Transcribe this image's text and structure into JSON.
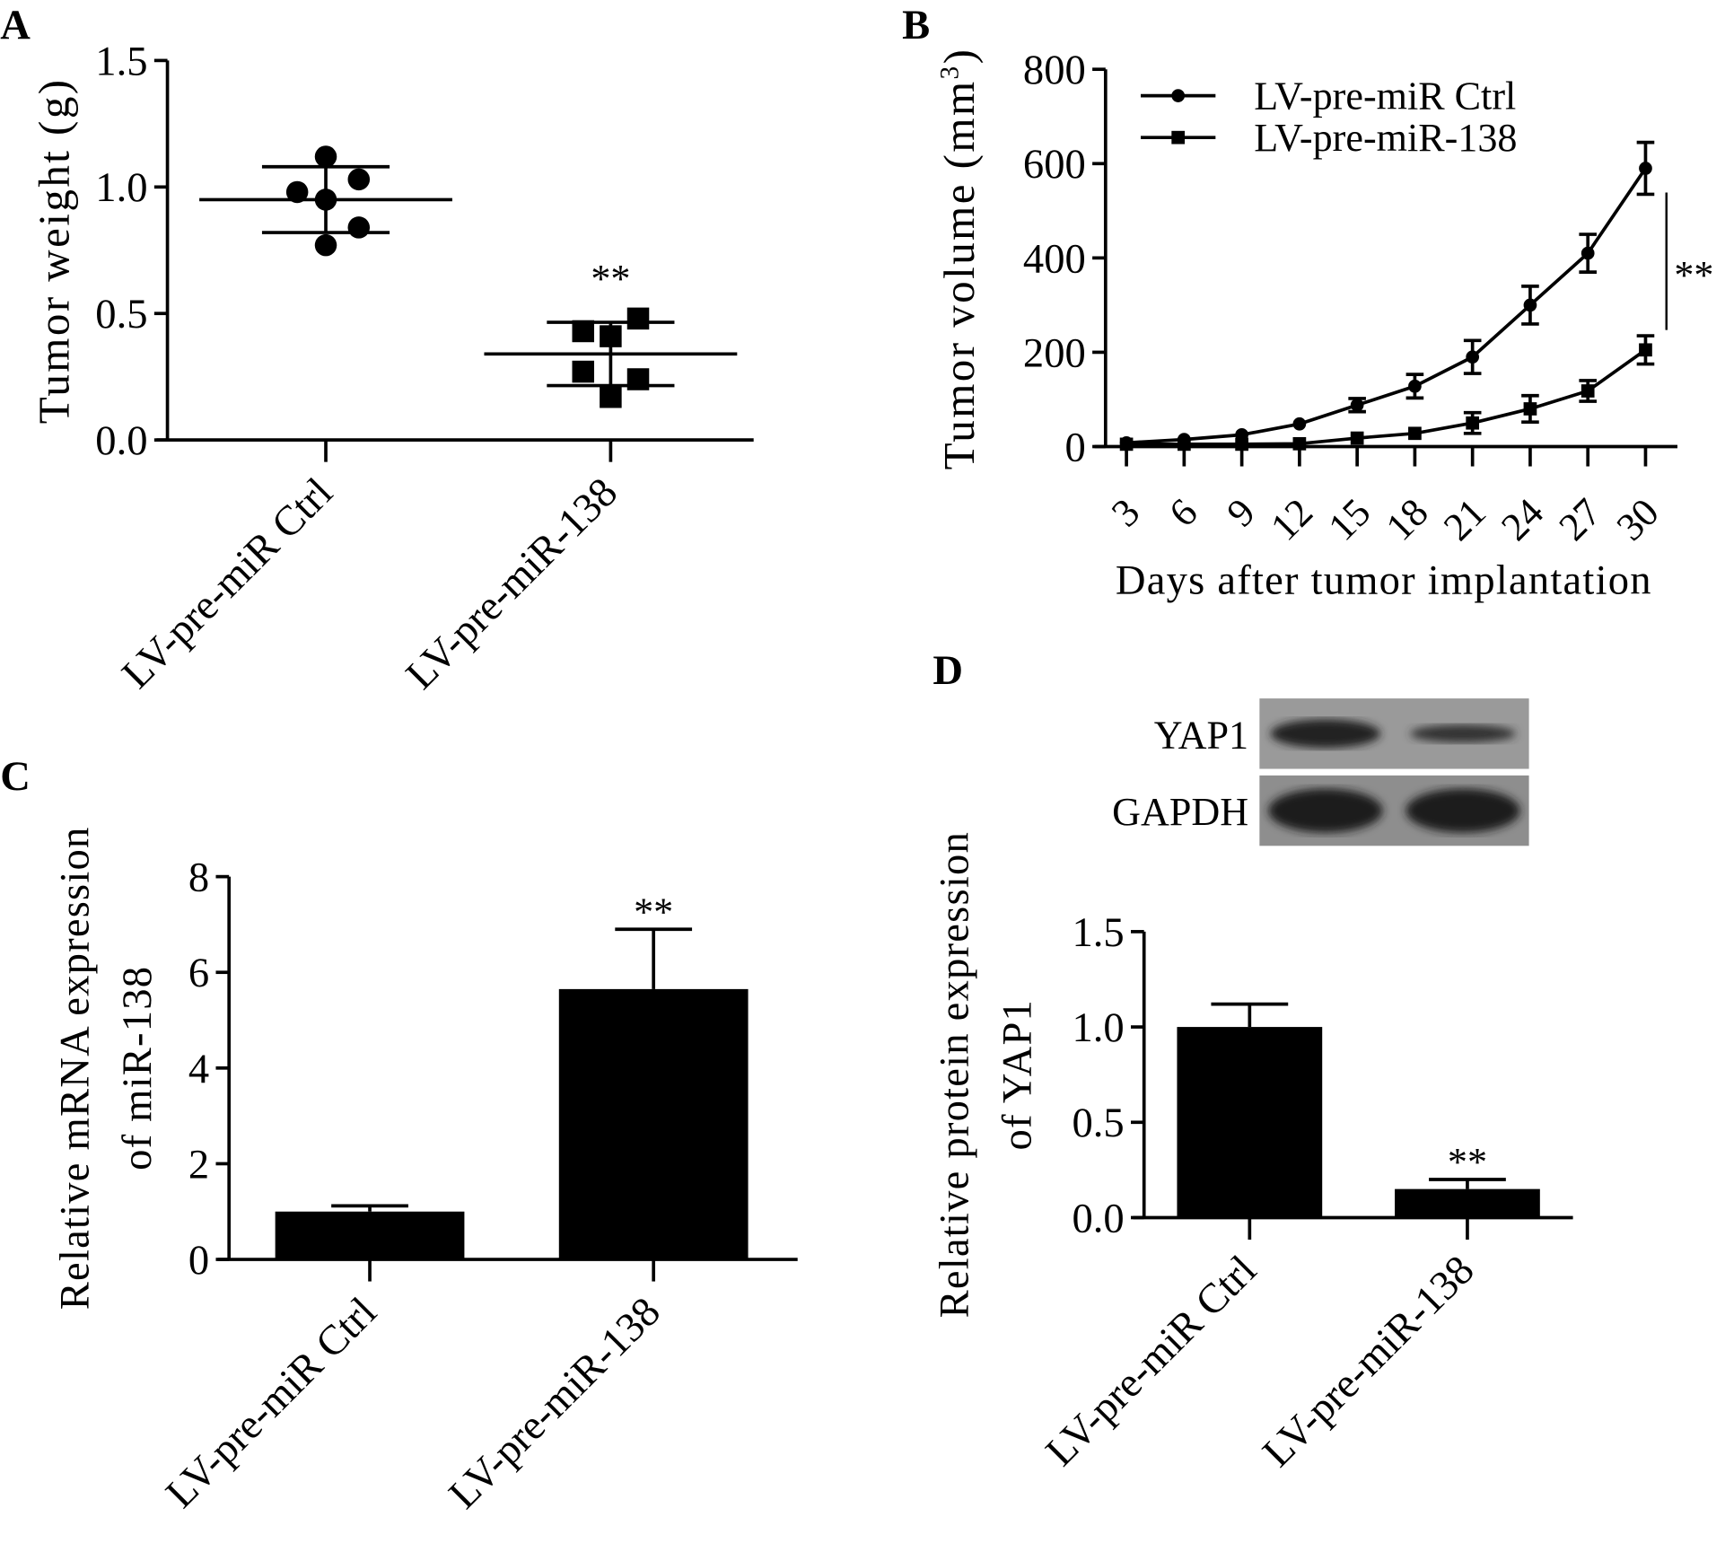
{
  "panel_labels": {
    "a": "A",
    "b": "B",
    "c": "C",
    "d": "D"
  },
  "chart_data": [
    {
      "panel": "A",
      "type": "scatter",
      "ylabel": "Tumor weight (g)",
      "ylim": [
        0,
        1.5
      ],
      "yticks": [
        "0.0",
        "0.5",
        "1.0",
        "1.5"
      ],
      "categories": [
        "LV-pre-miR Ctrl",
        "LV-pre-miR-138"
      ],
      "series": [
        {
          "category": "LV-pre-miR Ctrl",
          "marker": "circle",
          "points": [
            1.12,
            1.03,
            0.98,
            0.95,
            0.84,
            0.77
          ],
          "mean": 0.95,
          "sd": 0.13
        },
        {
          "category": "LV-pre-miR-138",
          "marker": "square",
          "points": [
            0.48,
            0.43,
            0.41,
            0.27,
            0.24,
            0.17
          ],
          "mean": 0.34,
          "sd": 0.125,
          "significance": "**"
        }
      ]
    },
    {
      "panel": "B",
      "type": "line",
      "xlabel": "Days after tumor implantation",
      "ylabel": "Tumor volume (mm",
      "ylabel_sup": "3",
      "ylabel_close": ")",
      "ylim": [
        0,
        800
      ],
      "yticks": [
        "0",
        "200",
        "400",
        "600",
        "800"
      ],
      "x": [
        3,
        6,
        9,
        12,
        15,
        18,
        21,
        24,
        27,
        30
      ],
      "legend_position": "top-left",
      "series": [
        {
          "name": "LV-pre-miR Ctrl",
          "marker": "circle",
          "values": [
            8,
            15,
            25,
            48,
            88,
            128,
            190,
            300,
            410,
            590
          ],
          "errors": [
            3,
            4,
            5,
            6,
            14,
            25,
            35,
            40,
            40,
            55
          ]
        },
        {
          "name": "LV-pre-miR-138",
          "marker": "square",
          "values": [
            5,
            5,
            5,
            6,
            18,
            28,
            50,
            80,
            118,
            205
          ],
          "errors": [
            2,
            2,
            2,
            3,
            5,
            6,
            22,
            28,
            22,
            30
          ]
        }
      ],
      "significance": "**"
    },
    {
      "panel": "C",
      "type": "bar",
      "ylabel": [
        "Relative mRNA expression",
        "of miR-138"
      ],
      "ylim": [
        0,
        8
      ],
      "yticks": [
        "0",
        "2",
        "4",
        "6",
        "8"
      ],
      "categories": [
        "LV-pre-miR Ctrl",
        "LV-pre-miR-138"
      ],
      "values": [
        1.0,
        5.65
      ],
      "errors": [
        0.12,
        1.25
      ],
      "significance": [
        "",
        "**"
      ]
    },
    {
      "panel": "D",
      "type": "bar",
      "blot_labels": [
        "YAP1",
        "GAPDH"
      ],
      "ylabel": [
        "Relative protein expression",
        "of YAP1"
      ],
      "ylim": [
        0,
        1.5
      ],
      "yticks": [
        "0.0",
        "0.5",
        "1.0",
        "1.5"
      ],
      "categories": [
        "LV-pre-miR Ctrl",
        "LV-pre-miR-138"
      ],
      "values": [
        1.0,
        0.15
      ],
      "errors": [
        0.12,
        0.05
      ],
      "significance": [
        "",
        "**"
      ]
    }
  ],
  "colors": {
    "ink": "#000000",
    "blot_bg": "#9a9a9a",
    "band": "#222222"
  }
}
